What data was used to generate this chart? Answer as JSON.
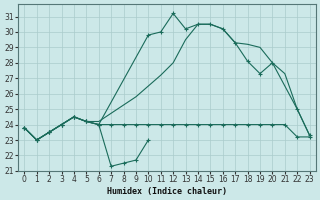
{
  "bg_color": "#cce8e8",
  "line_color": "#1a6b5a",
  "grid_color": "#aacccc",
  "xlabel": "Humidex (Indice chaleur)",
  "xlim": [
    -0.5,
    23.5
  ],
  "ylim": [
    21,
    31.8
  ],
  "xticks": [
    0,
    1,
    2,
    3,
    4,
    5,
    6,
    7,
    8,
    9,
    10,
    11,
    12,
    13,
    14,
    15,
    16,
    17,
    18,
    19,
    20,
    21,
    22,
    23
  ],
  "yticks": [
    21,
    22,
    23,
    24,
    25,
    26,
    27,
    28,
    29,
    30,
    31
  ],
  "curve_dip_x": [
    0,
    1,
    2,
    3,
    4,
    5,
    6,
    7,
    8,
    9,
    10
  ],
  "curve_dip_y": [
    23.8,
    23.0,
    23.5,
    24.0,
    24.5,
    24.2,
    24.0,
    21.3,
    21.5,
    21.7,
    23.0
  ],
  "curve_flat_x": [
    0,
    1,
    2,
    3,
    4,
    5,
    6,
    7,
    8,
    9,
    10,
    11,
    12,
    13,
    14,
    15,
    16,
    17,
    18,
    19,
    20,
    21,
    22,
    23
  ],
  "curve_flat_y": [
    23.8,
    23.0,
    23.5,
    24.0,
    24.5,
    24.2,
    24.0,
    24.0,
    24.0,
    24.0,
    24.0,
    24.0,
    24.0,
    24.0,
    24.0,
    24.0,
    24.0,
    24.0,
    24.0,
    24.0,
    24.0,
    24.0,
    23.2,
    23.2
  ],
  "curve_upper_x": [
    0,
    1,
    2,
    3,
    4,
    5,
    6,
    10,
    11,
    12,
    13,
    14,
    15,
    16,
    17,
    18,
    19,
    20,
    22,
    23
  ],
  "curve_upper_y": [
    23.8,
    23.0,
    23.5,
    24.0,
    24.5,
    24.2,
    24.0,
    29.8,
    30.0,
    31.2,
    30.2,
    30.5,
    30.5,
    30.2,
    29.3,
    28.1,
    27.3,
    28.0,
    25.0,
    23.3
  ],
  "curve_diag_x": [
    0,
    1,
    2,
    3,
    4,
    5,
    6,
    9,
    10,
    11,
    12,
    13,
    14,
    15,
    16,
    17,
    18,
    19,
    20,
    21,
    22,
    23
  ],
  "curve_diag_y": [
    23.8,
    23.0,
    23.5,
    24.0,
    24.5,
    24.2,
    24.2,
    25.8,
    26.5,
    27.2,
    28.0,
    29.5,
    30.5,
    30.5,
    30.2,
    29.3,
    29.2,
    29.0,
    28.0,
    27.3,
    25.0,
    23.3
  ]
}
